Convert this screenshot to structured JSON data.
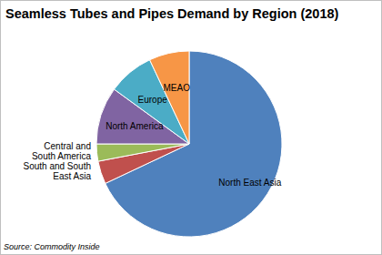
{
  "chart_data": {
    "type": "pie",
    "title": "Seamless Tubes and Pipes Demand by Region (2018)",
    "categories": [
      "North East Asia",
      "South and South East Asia",
      "Central and South America",
      "North America",
      "Europe",
      "MEAO"
    ],
    "values": [
      68,
      4,
      3,
      10,
      8,
      7
    ],
    "colors": [
      "#4f81bd",
      "#c0504d",
      "#9bbb59",
      "#8064a2",
      "#4bacc6",
      "#f79646"
    ],
    "source": "Source: Commodity Inside"
  }
}
